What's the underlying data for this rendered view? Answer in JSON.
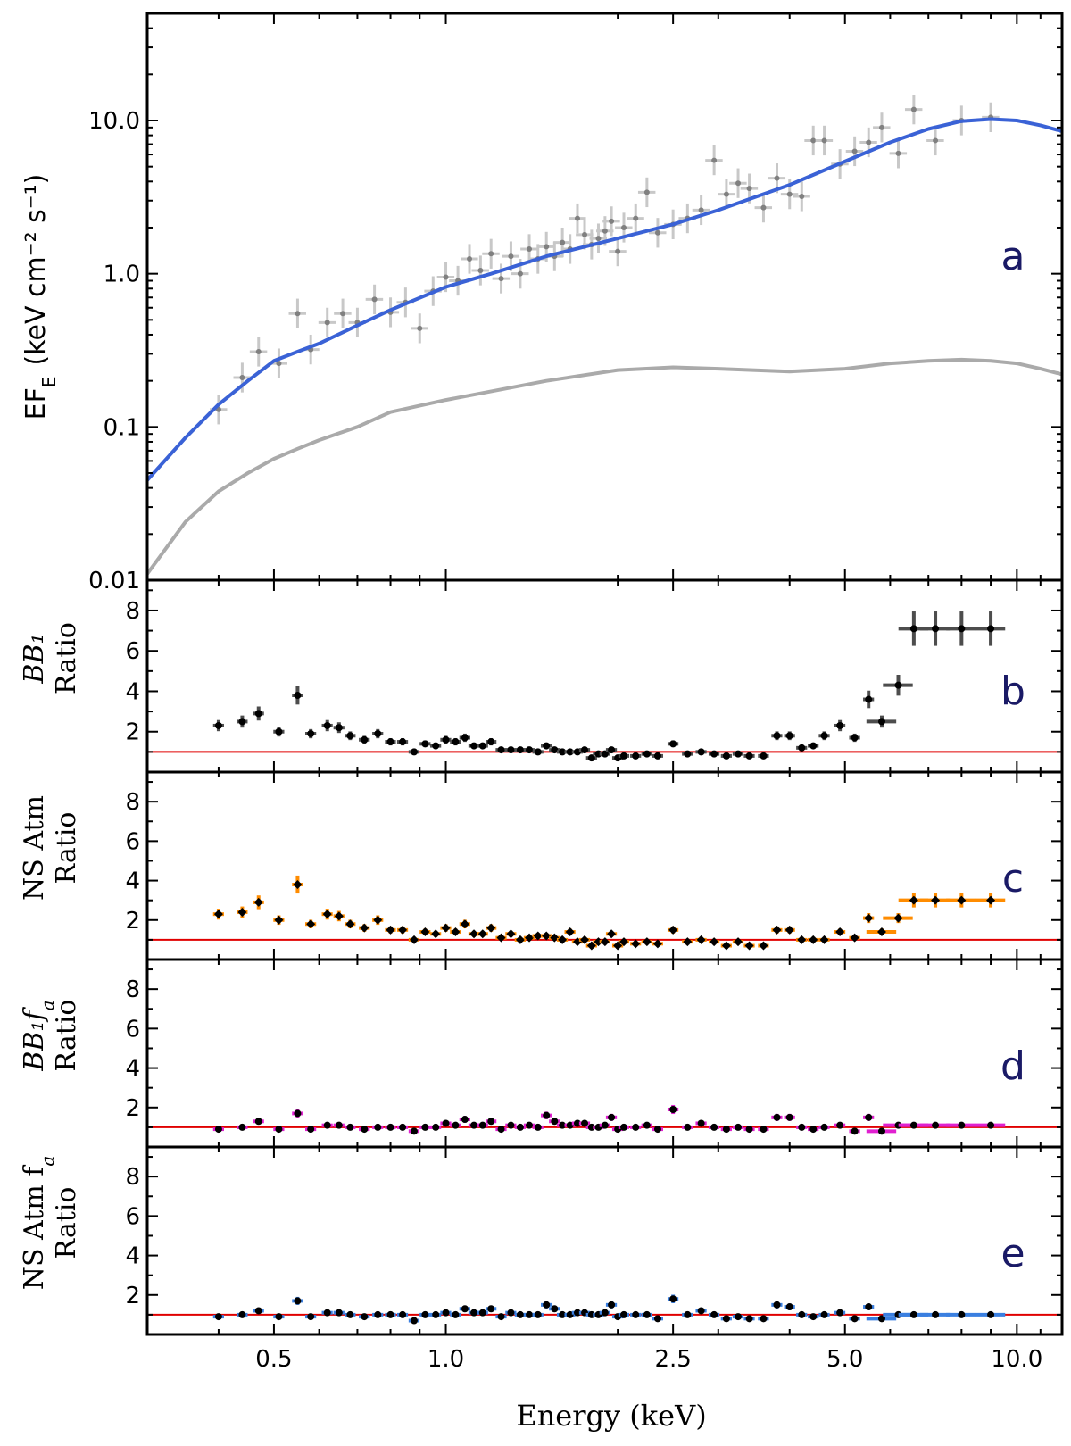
{
  "chart_data": {
    "type": "scatter",
    "xlabel": "Energy (keV)",
    "x_scale": "log",
    "x_ticks": [
      0.5,
      1.0,
      2.5,
      5.0,
      10.0
    ],
    "x_tick_labels": [
      "0.5",
      "1.0",
      "2.5",
      "5.0",
      "10.0"
    ],
    "xlim": [
      0.3,
      12.0
    ],
    "panels": [
      {
        "letter": "a",
        "type": "line",
        "ylabel": "EF",
        "ylabel_sub": "E",
        "ylabel_units": "(keV cm⁻² s⁻¹)",
        "y_scale": "log",
        "ylim": [
          0.01,
          50
        ],
        "y_ticks": [
          0.01,
          0.1,
          1.0,
          10.0
        ],
        "y_tick_labels": [
          "0.01",
          "0.1",
          "1.0",
          "10.0"
        ],
        "data_color": "#808080",
        "data": [
          [
            0.4,
            0.13
          ],
          [
            0.44,
            0.21
          ],
          [
            0.47,
            0.31
          ],
          [
            0.51,
            0.26
          ],
          [
            0.55,
            0.55
          ],
          [
            0.58,
            0.32
          ],
          [
            0.62,
            0.48
          ],
          [
            0.66,
            0.55
          ],
          [
            0.7,
            0.48
          ],
          [
            0.75,
            0.68
          ],
          [
            0.8,
            0.56
          ],
          [
            0.85,
            0.65
          ],
          [
            0.9,
            0.44
          ],
          [
            0.95,
            0.77
          ],
          [
            1.0,
            0.95
          ],
          [
            1.05,
            0.9
          ],
          [
            1.1,
            1.25
          ],
          [
            1.15,
            1.05
          ],
          [
            1.2,
            1.35
          ],
          [
            1.25,
            0.93
          ],
          [
            1.3,
            1.3
          ],
          [
            1.35,
            1.0
          ],
          [
            1.4,
            1.45
          ],
          [
            1.45,
            1.25
          ],
          [
            1.5,
            1.5
          ],
          [
            1.55,
            1.3
          ],
          [
            1.6,
            1.6
          ],
          [
            1.65,
            1.45
          ],
          [
            1.7,
            2.3
          ],
          [
            1.75,
            1.8
          ],
          [
            1.8,
            1.55
          ],
          [
            1.85,
            1.7
          ],
          [
            1.9,
            1.9
          ],
          [
            1.95,
            2.2
          ],
          [
            2.0,
            1.4
          ],
          [
            2.05,
            2.0
          ],
          [
            2.15,
            2.3
          ],
          [
            2.25,
            3.4
          ],
          [
            2.35,
            1.85
          ],
          [
            2.5,
            2.1
          ],
          [
            2.65,
            2.3
          ],
          [
            2.8,
            2.6
          ],
          [
            2.95,
            5.5
          ],
          [
            3.1,
            3.3
          ],
          [
            3.25,
            3.9
          ],
          [
            3.4,
            3.6
          ],
          [
            3.6,
            2.7
          ],
          [
            3.8,
            4.2
          ],
          [
            4.0,
            3.3
          ],
          [
            4.2,
            3.2
          ],
          [
            4.4,
            7.4
          ],
          [
            4.6,
            7.4
          ],
          [
            4.9,
            5.2
          ],
          [
            5.2,
            6.3
          ],
          [
            5.5,
            7.2
          ],
          [
            5.8,
            9.0
          ],
          [
            6.2,
            6.1
          ],
          [
            6.6,
            11.8
          ],
          [
            7.2,
            7.4
          ],
          [
            8.0,
            10.0
          ],
          [
            9.0,
            10.5
          ]
        ],
        "curves": [
          {
            "name": "",
            "color": "#3a62d6",
            "x": [
              0.3,
              0.35,
              0.4,
              0.45,
              0.5,
              0.55,
              0.6,
              0.7,
              0.8,
              1.0,
              1.2,
              1.5,
              2.0,
              2.5,
              3.0,
              4.0,
              5.0,
              6.0,
              7.0,
              8.0,
              9.0,
              10.0,
              11.0,
              12.0
            ],
            "y": [
              0.045,
              0.085,
              0.14,
              0.2,
              0.27,
              0.31,
              0.35,
              0.46,
              0.58,
              0.82,
              1.0,
              1.3,
              1.7,
              2.1,
              2.6,
              3.8,
              5.4,
              7.2,
              8.8,
              9.9,
              10.2,
              10.0,
              9.3,
              8.5
            ]
          },
          {
            "name": "",
            "color": "#aaaaaa",
            "x": [
              0.3,
              0.35,
              0.4,
              0.45,
              0.5,
              0.55,
              0.6,
              0.7,
              0.8,
              1.0,
              1.5,
              2.0,
              2.5,
              3.0,
              4.0,
              5.0,
              6.0,
              7.0,
              8.0,
              9.0,
              10.0,
              11.0,
              12.0
            ],
            "y": [
              0.011,
              0.024,
              0.038,
              0.05,
              0.062,
              0.072,
              0.082,
              0.1,
              0.125,
              0.15,
              0.2,
              0.235,
              0.245,
              0.24,
              0.23,
              0.24,
              0.26,
              0.27,
              0.275,
              0.27,
              0.26,
              0.24,
              0.22
            ]
          }
        ]
      },
      {
        "letter": "b",
        "ylabel_line1": "BB₁",
        "ylabel_line2": "Ratio",
        "ylim": [
          0,
          9.5
        ],
        "y_ticks": [
          2,
          4,
          6,
          8
        ],
        "y_tick_labels": [
          "2",
          "4",
          "6",
          "8"
        ],
        "ref_line": 1,
        "marker_color": "#000000",
        "error_color": "#4d4d4d",
        "marker": "circle",
        "x": [
          0.4,
          0.44,
          0.47,
          0.51,
          0.55,
          0.58,
          0.62,
          0.65,
          0.68,
          0.72,
          0.76,
          0.8,
          0.84,
          0.88,
          0.92,
          0.96,
          1.0,
          1.04,
          1.08,
          1.12,
          1.16,
          1.2,
          1.25,
          1.3,
          1.35,
          1.4,
          1.45,
          1.5,
          1.55,
          1.6,
          1.65,
          1.7,
          1.75,
          1.8,
          1.85,
          1.9,
          1.95,
          2.0,
          2.05,
          2.15,
          2.25,
          2.35,
          2.5,
          2.65,
          2.8,
          2.95,
          3.1,
          3.25,
          3.4,
          3.6,
          3.8,
          4.0,
          4.2,
          4.4,
          4.6,
          4.9,
          5.2,
          5.5,
          5.8,
          6.2,
          6.6,
          7.2,
          8.0,
          9.0
        ],
        "y": [
          2.3,
          2.5,
          2.9,
          2.0,
          3.8,
          1.9,
          2.3,
          2.2,
          1.8,
          1.6,
          1.9,
          1.5,
          1.5,
          1.0,
          1.4,
          1.3,
          1.6,
          1.5,
          1.7,
          1.3,
          1.3,
          1.5,
          1.1,
          1.1,
          1.1,
          1.1,
          1.0,
          1.3,
          1.1,
          1.0,
          1.0,
          1.0,
          1.1,
          0.7,
          0.9,
          0.9,
          1.1,
          0.7,
          0.8,
          0.8,
          0.9,
          0.8,
          1.4,
          0.9,
          1.0,
          0.9,
          0.8,
          0.9,
          0.8,
          0.8,
          1.8,
          1.8,
          1.2,
          1.3,
          1.8,
          2.3,
          1.7,
          3.6,
          2.5,
          4.3,
          7.1,
          7.1,
          7.1,
          7.1
        ]
      },
      {
        "letter": "c",
        "ylabel_line1": "NS Atm",
        "ylabel_line2": "Ratio",
        "ylim": [
          0,
          9.5
        ],
        "y_ticks": [
          2,
          4,
          6,
          8
        ],
        "y_tick_labels": [
          "2",
          "4",
          "6",
          "8"
        ],
        "ref_line": 1,
        "marker_color": "#000000",
        "error_color": "#ff8c00",
        "marker": "diamond",
        "x": [
          0.4,
          0.44,
          0.47,
          0.51,
          0.55,
          0.58,
          0.62,
          0.65,
          0.68,
          0.72,
          0.76,
          0.8,
          0.84,
          0.88,
          0.92,
          0.96,
          1.0,
          1.04,
          1.08,
          1.12,
          1.16,
          1.2,
          1.25,
          1.3,
          1.35,
          1.4,
          1.45,
          1.5,
          1.55,
          1.6,
          1.65,
          1.7,
          1.75,
          1.8,
          1.85,
          1.9,
          1.95,
          2.0,
          2.05,
          2.15,
          2.25,
          2.35,
          2.5,
          2.65,
          2.8,
          2.95,
          3.1,
          3.25,
          3.4,
          3.6,
          3.8,
          4.0,
          4.2,
          4.4,
          4.6,
          4.9,
          5.2,
          5.5,
          5.8,
          6.2,
          6.6,
          7.2,
          8.0,
          9.0
        ],
        "y": [
          2.3,
          2.4,
          2.9,
          2.0,
          3.8,
          1.8,
          2.3,
          2.2,
          1.8,
          1.6,
          2.0,
          1.5,
          1.5,
          1.0,
          1.4,
          1.3,
          1.6,
          1.4,
          1.8,
          1.3,
          1.3,
          1.6,
          1.1,
          1.3,
          1.0,
          1.1,
          1.2,
          1.2,
          1.1,
          1.0,
          1.4,
          0.9,
          1.0,
          0.7,
          0.9,
          0.9,
          1.3,
          0.7,
          0.9,
          0.8,
          0.9,
          0.8,
          1.5,
          0.9,
          1.0,
          0.9,
          0.7,
          0.9,
          0.7,
          0.7,
          1.5,
          1.5,
          1.0,
          1.0,
          1.0,
          1.4,
          1.1,
          2.1,
          1.4,
          2.1,
          3.0,
          3.0,
          3.0,
          3.0
        ]
      },
      {
        "letter": "d",
        "ylabel_line1": "BB₁f",
        "ylabel_line1_sub": "a",
        "ylabel_line2": "Ratio",
        "ylim": [
          0,
          9.5
        ],
        "y_ticks": [
          2,
          4,
          6,
          8
        ],
        "y_tick_labels": [
          "2",
          "4",
          "6",
          "8"
        ],
        "ref_line": 1,
        "marker_color": "#000000",
        "error_color": "#e020d0",
        "marker": "circle",
        "x": [
          0.4,
          0.44,
          0.47,
          0.51,
          0.55,
          0.58,
          0.62,
          0.65,
          0.68,
          0.72,
          0.76,
          0.8,
          0.84,
          0.88,
          0.92,
          0.96,
          1.0,
          1.04,
          1.08,
          1.12,
          1.16,
          1.2,
          1.25,
          1.3,
          1.35,
          1.4,
          1.45,
          1.5,
          1.55,
          1.6,
          1.65,
          1.7,
          1.75,
          1.8,
          1.85,
          1.9,
          1.95,
          2.0,
          2.05,
          2.15,
          2.25,
          2.35,
          2.5,
          2.65,
          2.8,
          2.95,
          3.1,
          3.25,
          3.4,
          3.6,
          3.8,
          4.0,
          4.2,
          4.4,
          4.6,
          4.9,
          5.2,
          5.5,
          5.8,
          6.2,
          6.6,
          7.2,
          8.0,
          9.0
        ],
        "y": [
          0.9,
          1.0,
          1.3,
          0.9,
          1.7,
          0.9,
          1.1,
          1.1,
          1.0,
          0.9,
          1.0,
          1.0,
          1.0,
          0.8,
          1.0,
          1.0,
          1.2,
          1.1,
          1.4,
          1.1,
          1.1,
          1.3,
          0.9,
          1.1,
          1.0,
          1.1,
          1.0,
          1.6,
          1.3,
          1.1,
          1.1,
          1.2,
          1.2,
          1.0,
          1.0,
          1.1,
          1.5,
          0.9,
          1.0,
          1.0,
          1.1,
          0.9,
          1.9,
          1.0,
          1.2,
          1.0,
          0.9,
          1.0,
          0.9,
          0.9,
          1.5,
          1.5,
          1.0,
          0.9,
          1.0,
          1.1,
          0.8,
          1.5,
          0.8,
          1.1,
          1.1,
          1.1,
          1.1,
          1.1
        ]
      },
      {
        "letter": "e",
        "ylabel_line1": "NS Atm f",
        "ylabel_line1_sub": "a",
        "ylabel_line2": "Ratio",
        "ylim": [
          0,
          9.5
        ],
        "y_ticks": [
          2,
          4,
          6,
          8
        ],
        "y_tick_labels": [
          "2",
          "4",
          "6",
          "8"
        ],
        "ref_line": 1,
        "marker_color": "#000000",
        "error_color": "#3a7fe0",
        "marker": "circle",
        "x": [
          0.4,
          0.44,
          0.47,
          0.51,
          0.55,
          0.58,
          0.62,
          0.65,
          0.68,
          0.72,
          0.76,
          0.8,
          0.84,
          0.88,
          0.92,
          0.96,
          1.0,
          1.04,
          1.08,
          1.12,
          1.16,
          1.2,
          1.25,
          1.3,
          1.35,
          1.4,
          1.45,
          1.5,
          1.55,
          1.6,
          1.65,
          1.7,
          1.75,
          1.8,
          1.85,
          1.9,
          1.95,
          2.0,
          2.05,
          2.15,
          2.25,
          2.35,
          2.5,
          2.65,
          2.8,
          2.95,
          3.1,
          3.25,
          3.4,
          3.6,
          3.8,
          4.0,
          4.2,
          4.4,
          4.6,
          4.9,
          5.2,
          5.5,
          5.8,
          6.2,
          6.6,
          7.2,
          8.0,
          9.0
        ],
        "y": [
          0.9,
          1.0,
          1.2,
          0.9,
          1.7,
          0.9,
          1.1,
          1.1,
          1.0,
          0.9,
          1.0,
          1.0,
          1.0,
          0.7,
          1.0,
          1.0,
          1.1,
          1.0,
          1.3,
          1.1,
          1.1,
          1.3,
          0.9,
          1.1,
          1.0,
          1.0,
          1.0,
          1.5,
          1.3,
          1.0,
          1.0,
          1.1,
          1.1,
          1.0,
          1.0,
          1.1,
          1.5,
          0.9,
          1.0,
          1.0,
          1.0,
          0.8,
          1.8,
          1.0,
          1.2,
          1.0,
          0.8,
          0.9,
          0.8,
          0.8,
          1.5,
          1.4,
          1.0,
          0.9,
          1.0,
          1.1,
          0.8,
          1.4,
          0.8,
          1.0,
          1.0,
          1.0,
          1.0,
          1.0
        ]
      }
    ]
  }
}
